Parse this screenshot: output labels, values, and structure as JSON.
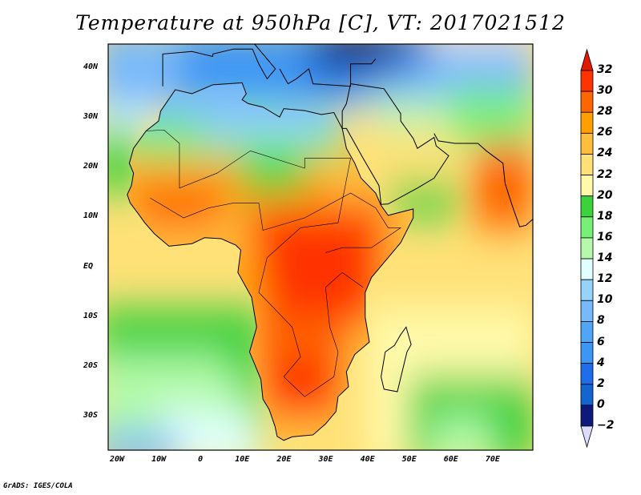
{
  "title": "Temperature at 950hPa [C], VT: 2017021512",
  "y_axis_labels": [
    "40N",
    "30N",
    "20N",
    "10N",
    "EQ",
    "10S",
    "20S",
    "30S"
  ],
  "x_axis_labels": [
    "20W",
    "10W",
    "0",
    "10E",
    "20E",
    "30E",
    "40E",
    "50E",
    "60E",
    "70E"
  ],
  "colorbar": {
    "labels": [
      "32",
      "30",
      "28",
      "26",
      "24",
      "22",
      "20",
      "18",
      "16",
      "14",
      "12",
      "10",
      "8",
      "6",
      "4",
      "2",
      "0",
      "−2"
    ],
    "top_triangle_color": "#e41a00",
    "bottom_triangle_color": "#dcdcff",
    "colors": [
      "#ff3300",
      "#ff6600",
      "#ffa000",
      "#ffbe3c",
      "#ffe178",
      "#fffaaa",
      "#3cd23c",
      "#78f078",
      "#b4faaa",
      "#e1ffff",
      "#96d2fa",
      "#78b9fa",
      "#50a5f5",
      "#3c96f5",
      "#1e6eeb",
      "#1464d2",
      "#0f197d"
    ]
  },
  "footer": "GrADS: IGES/COLA"
}
